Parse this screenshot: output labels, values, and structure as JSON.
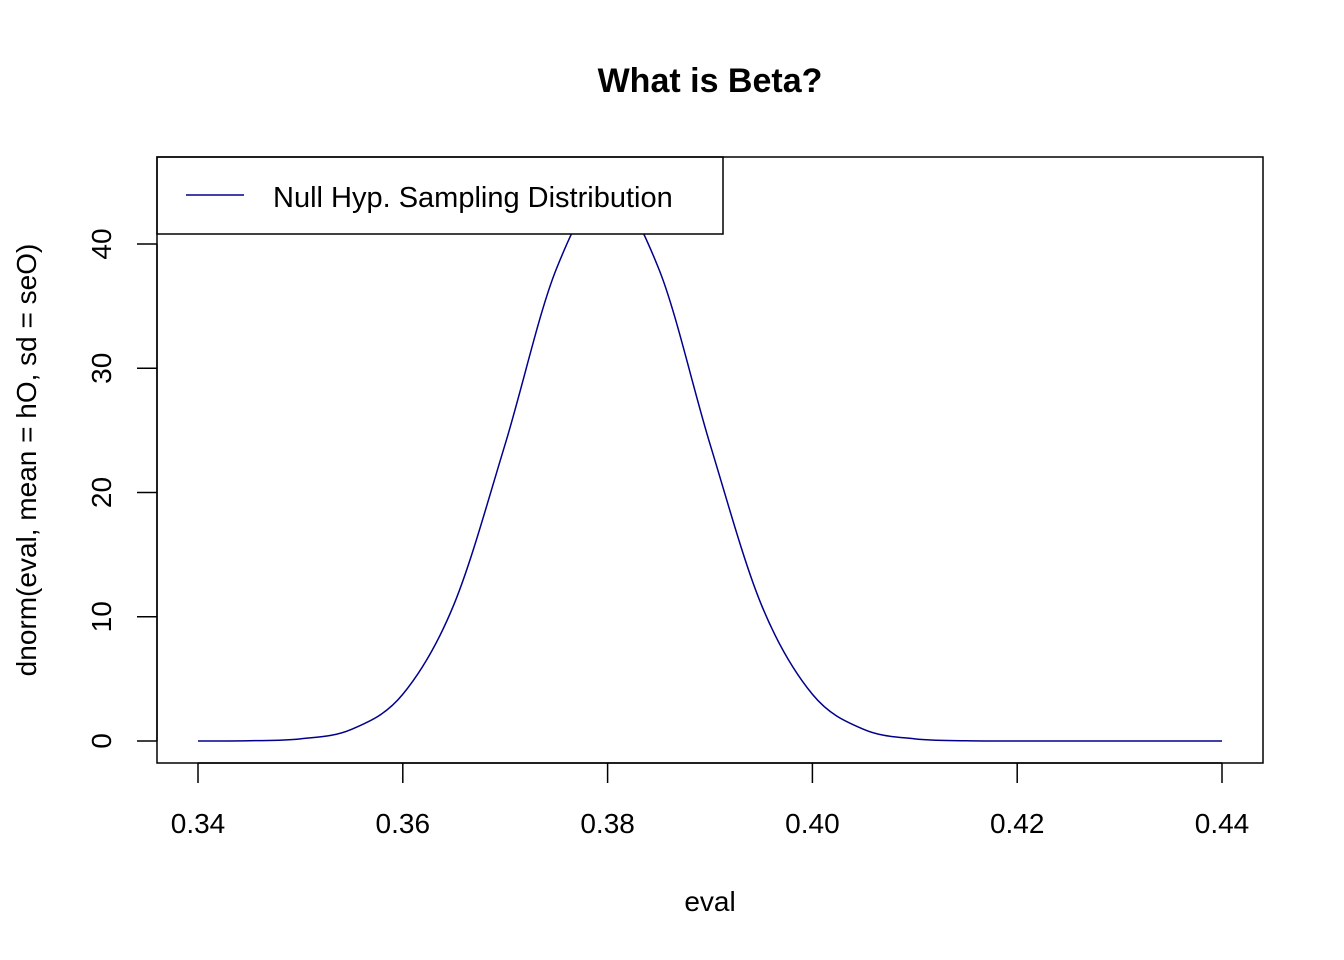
{
  "chart_data": {
    "type": "line",
    "title": "What is Beta?",
    "xlabel": "eval",
    "ylabel": "dnorm(eval, mean = hO, sd = seO)",
    "xlim": [
      0.34,
      0.44
    ],
    "ylim": [
      0,
      44.33
    ],
    "xticks": [
      "0.34",
      "0.36",
      "0.38",
      "0.40",
      "0.42",
      "0.44"
    ],
    "yticks": [
      "0",
      "10",
      "20",
      "30",
      "40"
    ],
    "grid": false,
    "legend": {
      "placement": "top-left",
      "entries": [
        {
          "label": "Null Hyp. Sampling Distribution",
          "color": "#00008B"
        }
      ]
    },
    "series": [
      {
        "name": "Null Hyp. Sampling Distribution",
        "color": "#00008B",
        "x": [
          0.34,
          0.345,
          0.35,
          0.355,
          0.36,
          0.365,
          0.37,
          0.375,
          0.38,
          0.385,
          0.39,
          0.395,
          0.4,
          0.405,
          0.41,
          0.415,
          0.42,
          0.425,
          0.43,
          0.435,
          0.44
        ],
        "y": [
          0.0,
          0.02,
          0.17,
          0.94,
          3.76,
          11.0,
          23.9,
          38.0,
          44.33,
          38.0,
          23.9,
          11.0,
          3.76,
          0.94,
          0.17,
          0.02,
          0.0,
          0.0,
          0.0,
          0.0,
          0.0
        ]
      }
    ]
  }
}
